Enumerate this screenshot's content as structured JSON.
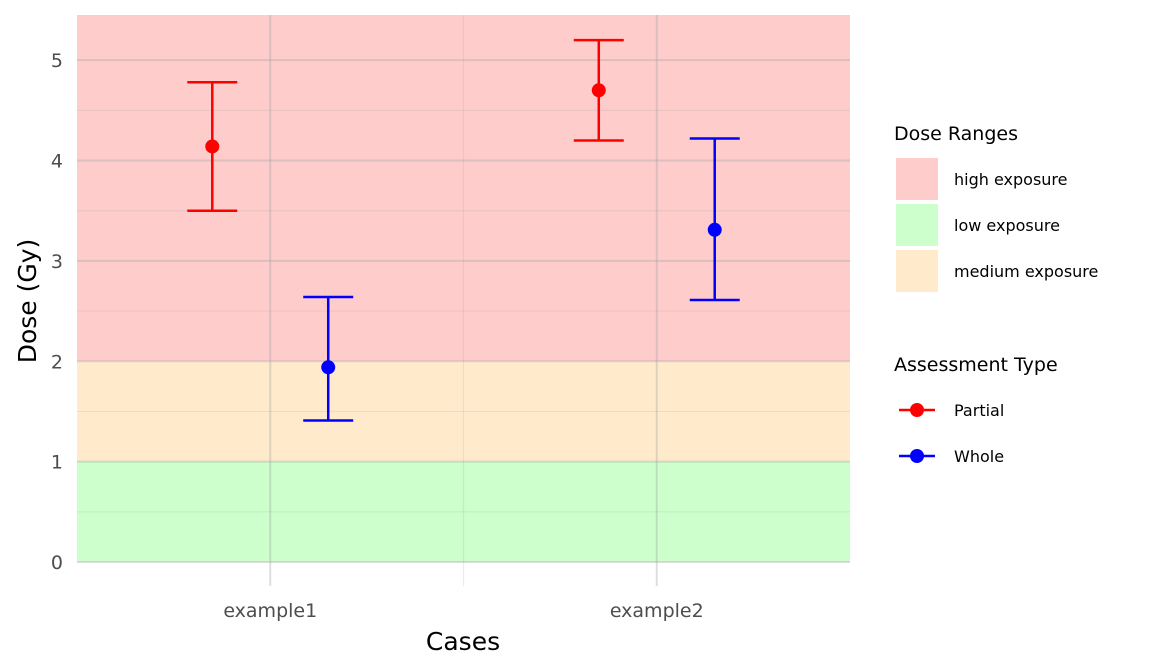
{
  "chart_data": {
    "type": "errorbar-scatter",
    "xlabel": "Cases",
    "ylabel": "Dose (Gy)",
    "categories": [
      "example1",
      "example2"
    ],
    "ylim": [
      0,
      5.45
    ],
    "yticks": [
      0,
      1,
      2,
      3,
      4,
      5
    ],
    "grid": true,
    "legend_position": "right",
    "bands": {
      "title": "Dose Ranges",
      "items": [
        {
          "name": "high exposure",
          "from": 2,
          "to": 5.45,
          "color": "#ffcccc"
        },
        {
          "name": "low exposure",
          "from": 0,
          "to": 1,
          "color": "#ccffcc"
        },
        {
          "name": "medium exposure",
          "from": 1,
          "to": 2,
          "color": "#ffebcc"
        }
      ]
    },
    "series_legend_title": "Assessment Type",
    "series": [
      {
        "name": "Partial",
        "color": "#ff0000",
        "points": [
          {
            "category": "example1",
            "y": 4.14,
            "low": 3.5,
            "high": 4.78
          },
          {
            "category": "example2",
            "y": 4.7,
            "low": 4.2,
            "high": 5.2
          }
        ]
      },
      {
        "name": "Whole",
        "color": "#0000ff",
        "points": [
          {
            "category": "example1",
            "y": 1.94,
            "low": 1.41,
            "high": 2.64
          },
          {
            "category": "example2",
            "y": 3.31,
            "low": 2.61,
            "high": 4.22
          }
        ]
      }
    ]
  }
}
